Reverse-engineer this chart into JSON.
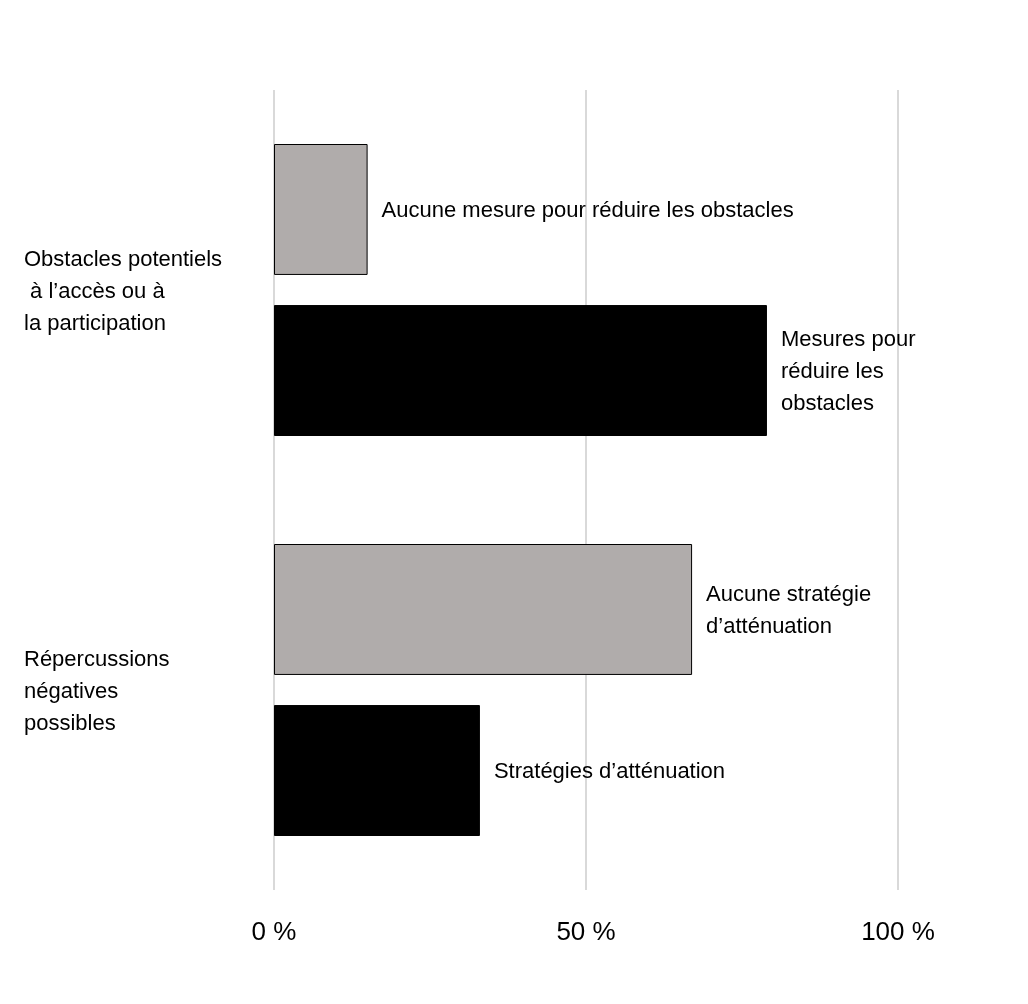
{
  "chart_data": {
    "type": "bar",
    "orientation": "horizontal",
    "categories": [
      "Obstacles potentiels à l’accès ou à la participation",
      "Répercussions négatives possibles"
    ],
    "series": [
      {
        "name": "Aucune mesure pour réduire les obstacles",
        "color": "#b0acab",
        "values": [
          15,
          null
        ]
      },
      {
        "name": "Mesures pour réduire les obstacles",
        "color": "#000000",
        "values": [
          79,
          null
        ]
      },
      {
        "name": "Aucune stratégie d’atténuation",
        "color": "#b0acab",
        "values": [
          null,
          67
        ]
      },
      {
        "name": "Stratégies d’atténuation",
        "color": "#000000",
        "values": [
          null,
          33
        ]
      }
    ],
    "xlim": [
      0,
      100
    ],
    "xticks": [
      {
        "value": 0,
        "label": "0 %"
      },
      {
        "value": 50,
        "label": "50 %"
      },
      {
        "value": 100,
        "label": "100 %"
      }
    ],
    "grid": "x"
  }
}
